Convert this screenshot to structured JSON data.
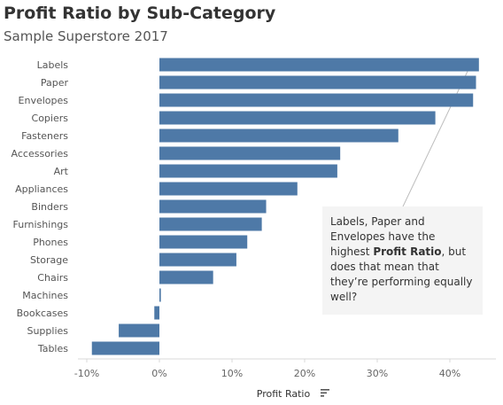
{
  "title": "Profit Ratio by Sub-Category",
  "subtitle": "Sample Superstore 2017",
  "annotation": {
    "part1": "Labels, Paper and Envelopes have the highest ",
    "bold": "Profit Ratio",
    "part2": ", but does that mean that they’re performing equally well?"
  },
  "colors": {
    "bar": "#4e79a7",
    "annotation_background": "#f4f4f4",
    "annotation_line": "#bdbdbd",
    "axis_line": "#d9d9d9"
  },
  "chart_data": {
    "type": "bar",
    "orientation": "horizontal",
    "categories": [
      "Labels",
      "Paper",
      "Envelopes",
      "Copiers",
      "Fasteners",
      "Accessories",
      "Art",
      "Appliances",
      "Binders",
      "Furnishings",
      "Phones",
      "Storage",
      "Chairs",
      "Machines",
      "Bookcases",
      "Supplies",
      "Tables"
    ],
    "values": [
      44.0,
      43.6,
      43.2,
      38.0,
      32.9,
      24.9,
      24.5,
      19.0,
      14.7,
      14.1,
      12.1,
      10.6,
      7.4,
      0.2,
      -0.7,
      -5.6,
      -9.3
    ],
    "xlabel": "Profit Ratio",
    "ylabel": "",
    "xlim": [
      -11,
      45
    ],
    "xticks": [
      -10,
      0,
      10,
      20,
      30,
      40
    ],
    "xtick_labels": [
      "-10%",
      "0%",
      "10%",
      "20%",
      "30%",
      "40%"
    ],
    "grid": false,
    "sort_icon": "sort-descending-icon"
  }
}
